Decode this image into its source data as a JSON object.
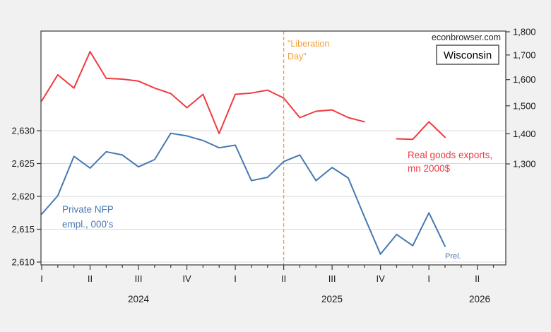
{
  "header": {
    "watermark": "econbrowser.com",
    "region_box_label": "Wisconsin"
  },
  "annotations": {
    "liberation_line1": "\"Liberation",
    "liberation_line2": "Day\"",
    "exports_label_line1": "Real goods exports,",
    "exports_label_line2": "mn 2000$",
    "nfp_label_line1": "Private NFP",
    "nfp_label_line2": "empl., 000's",
    "prel_label": "Prel."
  },
  "colors": {
    "nfp_line": "#4678b2",
    "exports_line": "#ef3b41",
    "liberation_orange": "#f0a03c",
    "grid": "#d9d9d9",
    "plot_border": "#3a3a3a",
    "tick_text": "#1a1a1a",
    "watermark_text": "#222222"
  },
  "chart_data": {
    "type": "line",
    "title": "",
    "months": [
      "2024-01",
      "2024-02",
      "2024-03",
      "2024-04",
      "2024-05",
      "2024-06",
      "2024-07",
      "2024-08",
      "2024-09",
      "2024-10",
      "2024-11",
      "2024-12",
      "2025-01",
      "2025-02",
      "2025-03",
      "2025-04",
      "2025-05",
      "2025-06",
      "2025-07",
      "2025-08",
      "2025-09",
      "2025-10",
      "2025-11",
      "2025-12",
      "2026-01",
      "2026-02"
    ],
    "series": [
      {
        "name": "Private NFP empl., 000's",
        "axis": "left",
        "values": [
          2617.3,
          2620.1,
          2626.1,
          2624.3,
          2626.8,
          2626.3,
          2624.5,
          2625.6,
          2629.6,
          2629.2,
          2628.5,
          2627.4,
          2627.8,
          2622.4,
          2622.9,
          2625.3,
          2626.3,
          2622.4,
          2624.4,
          2622.8,
          2616.9,
          2611.2,
          2614.2,
          2612.5,
          2617.5,
          2612.4
        ]
      },
      {
        "name": "Real goods exports, mn 2000$",
        "axis": "right",
        "values": [
          1518,
          1619,
          1567,
          1714,
          1605,
          1602,
          1594,
          1567,
          1546,
          1493,
          1543,
          1401,
          1543,
          1548,
          1559,
          1529,
          1457,
          1480,
          1485,
          1457,
          1442,
          null,
          1383,
          1381,
          1442,
          1388
        ]
      }
    ],
    "left_axis": {
      "scale": "linear",
      "ticks": [
        {
          "v": 2610,
          "label": "2,610"
        },
        {
          "v": 2615,
          "label": "2,615"
        },
        {
          "v": 2620,
          "label": "2,620"
        },
        {
          "v": 2625,
          "label": "2,625"
        },
        {
          "v": 2630,
          "label": "2,630"
        }
      ]
    },
    "right_axis": {
      "scale": "log",
      "ticks": [
        {
          "v": 1300,
          "label": "1,300"
        },
        {
          "v": 1400,
          "label": "1,400"
        },
        {
          "v": 1500,
          "label": "1,500"
        },
        {
          "v": 1600,
          "label": "1,600"
        },
        {
          "v": 1700,
          "label": "1,700"
        },
        {
          "v": 1800,
          "label": "1,800"
        }
      ]
    },
    "x_axis": {
      "quarter_tick_month_indices": [
        0,
        3,
        6,
        9,
        12,
        15,
        18,
        21,
        24,
        27
      ],
      "quarter_labels": [
        "I",
        "II",
        "III",
        "IV",
        "I",
        "II",
        "III",
        "IV",
        "I",
        "II"
      ],
      "year_labels": [
        "2024",
        "2025",
        "2026"
      ],
      "minor_ticks": "monthly"
    },
    "event_line": {
      "label": "\"Liberation Day\"",
      "month_index": 15
    },
    "grid": "horizontal-only",
    "legend": "in-plot text labels"
  }
}
